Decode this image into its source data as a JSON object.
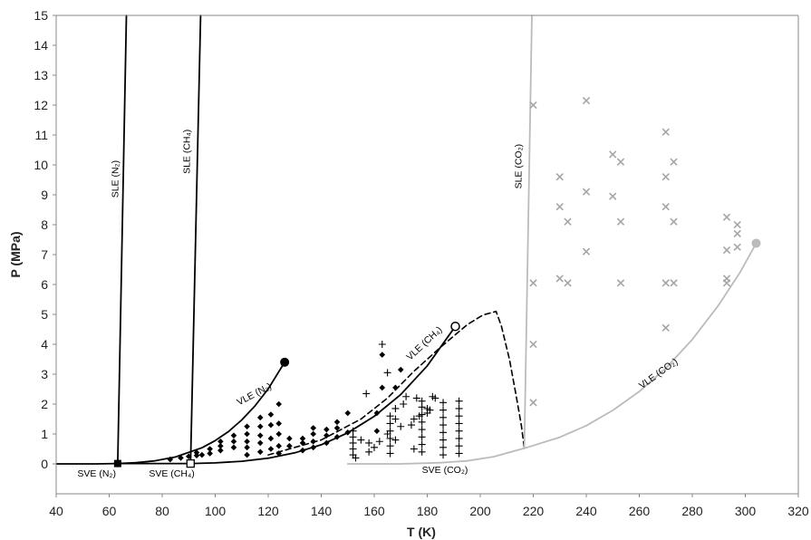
{
  "chart_data": {
    "type": "scatter",
    "xlabel": "T (K)",
    "ylabel": "P (MPa)",
    "xlim": [
      40,
      320
    ],
    "ylim": [
      -1,
      15
    ],
    "x_ticks": [
      40,
      60,
      80,
      100,
      120,
      140,
      160,
      180,
      200,
      220,
      240,
      260,
      280,
      300,
      320
    ],
    "y_ticks": [
      0,
      1,
      2,
      3,
      4,
      5,
      6,
      7,
      8,
      9,
      10,
      11,
      12,
      13,
      14,
      15
    ],
    "colors": {
      "black": "#000000",
      "gray": "#bbbbbb",
      "gray_marker": "#a6a6a6"
    },
    "lines": [
      {
        "id": "sve-n2",
        "color": "black",
        "width": 1.8,
        "points": [
          [
            40,
            0
          ],
          [
            55,
            0
          ],
          [
            63.2,
            0.0125
          ]
        ]
      },
      {
        "id": "sle-n2",
        "color": "black",
        "width": 1.8,
        "points": [
          [
            63.2,
            0.0125
          ],
          [
            66.5,
            15
          ]
        ]
      },
      {
        "id": "vle-n2",
        "color": "black",
        "width": 1.8,
        "points": [
          [
            63.2,
            0.0125
          ],
          [
            70,
            0.04
          ],
          [
            77,
            0.1
          ],
          [
            85,
            0.23
          ],
          [
            95,
            0.54
          ],
          [
            100,
            0.78
          ],
          [
            105,
            1.08
          ],
          [
            110,
            1.47
          ],
          [
            115,
            1.94
          ],
          [
            120,
            2.51
          ],
          [
            126.2,
            3.4
          ]
        ]
      },
      {
        "id": "sve-ch4",
        "color": "black",
        "width": 1.8,
        "points": [
          [
            63.2,
            0.0125
          ],
          [
            80,
            0.0125
          ],
          [
            90.7,
            0.0117
          ]
        ]
      },
      {
        "id": "sle-ch4",
        "color": "black",
        "width": 1.8,
        "points": [
          [
            90.7,
            0.0117
          ],
          [
            94.5,
            15
          ]
        ]
      },
      {
        "id": "vle-ch4",
        "color": "black",
        "width": 1.8,
        "points": [
          [
            90.7,
            0.0117
          ],
          [
            100,
            0.034
          ],
          [
            110,
            0.088
          ],
          [
            120,
            0.19
          ],
          [
            130,
            0.37
          ],
          [
            140,
            0.64
          ],
          [
            150,
            1.04
          ],
          [
            160,
            1.59
          ],
          [
            170,
            2.32
          ],
          [
            180,
            3.28
          ],
          [
            190.6,
            4.6
          ]
        ]
      },
      {
        "id": "dashed-envelope",
        "color": "black",
        "width": 1.6,
        "dash": "6,4",
        "points": [
          [
            120,
            0.3
          ],
          [
            140,
            0.8
          ],
          [
            155,
            1.5
          ],
          [
            165,
            2.2
          ],
          [
            175,
            3.1
          ],
          [
            185,
            3.9
          ],
          [
            195,
            4.65
          ],
          [
            201,
            4.98
          ],
          [
            206,
            5.1
          ],
          [
            208,
            4.6
          ],
          [
            211,
            3.5
          ],
          [
            213.5,
            2.3
          ],
          [
            215.5,
            1.3
          ],
          [
            216.6,
            0.52
          ]
        ]
      },
      {
        "id": "sve-co2",
        "color": "gray",
        "width": 1.8,
        "points": [
          [
            150,
            0.0
          ],
          [
            170,
            0.0
          ],
          [
            185,
            0.04
          ],
          [
            195,
            0.1
          ],
          [
            205,
            0.24
          ],
          [
            216.6,
            0.52
          ]
        ]
      },
      {
        "id": "sle-co2",
        "color": "gray",
        "width": 1.8,
        "points": [
          [
            216.6,
            0.52
          ],
          [
            219.5,
            15
          ]
        ]
      },
      {
        "id": "vle-co2",
        "color": "gray",
        "width": 1.8,
        "points": [
          [
            216.6,
            0.52
          ],
          [
            230,
            0.89
          ],
          [
            240,
            1.28
          ],
          [
            250,
            1.79
          ],
          [
            260,
            2.42
          ],
          [
            270,
            3.2
          ],
          [
            280,
            4.16
          ],
          [
            290,
            5.32
          ],
          [
            298,
            6.4
          ],
          [
            304.1,
            7.38
          ]
        ]
      }
    ],
    "endpoints": [
      {
        "id": "n2-triple-point",
        "shape": "filled-square",
        "color": "black",
        "x": 63.2,
        "y": 0.0125
      },
      {
        "id": "ch4-triple-point",
        "shape": "open-square",
        "color": "black",
        "x": 90.7,
        "y": 0.0117
      },
      {
        "id": "n2-critical-point",
        "shape": "filled-circle",
        "color": "black",
        "x": 126.2,
        "y": 3.4
      },
      {
        "id": "ch4-critical-point",
        "shape": "open-circle",
        "color": "black",
        "x": 190.6,
        "y": 4.6
      },
      {
        "id": "co2-critical-point",
        "shape": "filled-circle",
        "color": "gray",
        "x": 304.1,
        "y": 7.38
      }
    ],
    "curve_labels": [
      {
        "text": "SVE (N₂)",
        "x": 48,
        "y": -0.42,
        "angle": 0,
        "color": "black"
      },
      {
        "text": "SVE (CH₄)",
        "x": 75,
        "y": -0.42,
        "angle": 0,
        "color": "black"
      },
      {
        "text": "SVE (CO₂)",
        "x": 178,
        "y": -0.3,
        "angle": 0,
        "color": "black"
      },
      {
        "text": "SLE (N₂)",
        "x": 63.5,
        "y": 8.9,
        "angle": -90,
        "color": "black"
      },
      {
        "text": "SLE (CH₄)",
        "x": 90.5,
        "y": 9.7,
        "angle": -90,
        "color": "black"
      },
      {
        "text": "SLE (CO₂)",
        "x": 215.5,
        "y": 9.2,
        "angle": -90,
        "color": "black"
      },
      {
        "text": "VLE (N₂)",
        "x": 109,
        "y": 1.95,
        "angle": -28,
        "color": "black"
      },
      {
        "text": "VLE (CH₄)",
        "x": 173.5,
        "y": 3.45,
        "angle": -43,
        "color": "black"
      },
      {
        "text": "VLE (CO₂)",
        "x": 261,
        "y": 2.5,
        "angle": -36,
        "color": "black"
      }
    ],
    "series": [
      {
        "name": "",
        "marker": "diamond",
        "color": "black",
        "points": [
          [
            83,
            0.15
          ],
          [
            87,
            0.2
          ],
          [
            90,
            0.25
          ],
          [
            93,
            0.28
          ],
          [
            93,
            0.38
          ],
          [
            95,
            0.3
          ],
          [
            98,
            0.35
          ],
          [
            98,
            0.5
          ],
          [
            102,
            0.45
          ],
          [
            102,
            0.6
          ],
          [
            102,
            0.75
          ],
          [
            107,
            0.55
          ],
          [
            107,
            0.75
          ],
          [
            107,
            0.95
          ],
          [
            112,
            0.3
          ],
          [
            112,
            0.55
          ],
          [
            112,
            0.75
          ],
          [
            112,
            1.0
          ],
          [
            112,
            1.25
          ],
          [
            117,
            0.4
          ],
          [
            117,
            0.7
          ],
          [
            117,
            0.95
          ],
          [
            117,
            1.25
          ],
          [
            117,
            1.55
          ],
          [
            121,
            0.5
          ],
          [
            121,
            0.85
          ],
          [
            121,
            1.3
          ],
          [
            121,
            1.65
          ],
          [
            124,
            0.35
          ],
          [
            124,
            0.6
          ],
          [
            124,
            1.0
          ],
          [
            124,
            1.35
          ],
          [
            124,
            2.0
          ],
          [
            128,
            0.6
          ],
          [
            128,
            0.85
          ],
          [
            133,
            0.45
          ],
          [
            133,
            0.7
          ],
          [
            133,
            0.85
          ],
          [
            137,
            0.55
          ],
          [
            137,
            0.75
          ],
          [
            137,
            1.0
          ],
          [
            137,
            1.2
          ],
          [
            142,
            0.7
          ],
          [
            142,
            0.95
          ],
          [
            142,
            1.15
          ],
          [
            146,
            0.9
          ],
          [
            146,
            1.2
          ],
          [
            146,
            1.4
          ],
          [
            150,
            1.05
          ],
          [
            150,
            1.7
          ],
          [
            161,
            1.1
          ],
          [
            161,
            1.7
          ],
          [
            163,
            2.55
          ],
          [
            163,
            3.65
          ],
          [
            168,
            2.55
          ],
          [
            170,
            3.15
          ]
        ]
      },
      {
        "name": "",
        "marker": "plus",
        "color": "black",
        "points": [
          [
            152,
            0.3
          ],
          [
            152,
            0.5
          ],
          [
            152,
            0.7
          ],
          [
            152,
            0.9
          ],
          [
            152,
            1.1
          ],
          [
            153,
            0.2
          ],
          [
            155,
            0.8
          ],
          [
            157,
            2.35
          ],
          [
            158,
            0.4
          ],
          [
            158,
            0.7
          ],
          [
            160,
            0.55
          ],
          [
            162,
            0.75
          ],
          [
            163,
            4.0
          ],
          [
            165,
            3.05
          ],
          [
            165,
            1.0
          ],
          [
            166,
            0.35
          ],
          [
            166,
            0.6
          ],
          [
            166,
            0.85
          ],
          [
            166,
            1.1
          ],
          [
            166,
            1.35
          ],
          [
            166,
            1.6
          ],
          [
            168,
            1.85
          ],
          [
            168,
            0.8
          ],
          [
            168,
            1.5
          ],
          [
            170,
            1.25
          ],
          [
            171,
            2.0
          ],
          [
            172,
            2.25
          ],
          [
            174,
            1.3
          ],
          [
            175,
            1.5
          ],
          [
            175,
            0.5
          ],
          [
            176,
            2.2
          ],
          [
            177,
            1.6
          ],
          [
            178,
            0.4
          ],
          [
            178,
            0.65
          ],
          [
            178,
            0.9
          ],
          [
            178,
            1.15
          ],
          [
            178,
            1.4
          ],
          [
            178,
            1.65
          ],
          [
            178,
            1.9
          ],
          [
            178,
            2.1
          ],
          [
            180,
            1.7
          ],
          [
            180,
            1.85
          ],
          [
            181,
            1.8
          ],
          [
            182,
            2.25
          ],
          [
            183,
            2.2
          ],
          [
            186,
            0.3
          ],
          [
            186,
            0.55
          ],
          [
            186,
            0.8
          ],
          [
            186,
            1.05
          ],
          [
            186,
            1.3
          ],
          [
            186,
            1.55
          ],
          [
            186,
            1.8
          ],
          [
            186,
            2.05
          ],
          [
            192,
            0.35
          ],
          [
            192,
            0.6
          ],
          [
            192,
            0.85
          ],
          [
            192,
            1.1
          ],
          [
            192,
            1.35
          ],
          [
            192,
            1.6
          ],
          [
            192,
            1.85
          ],
          [
            192,
            2.1
          ]
        ]
      },
      {
        "name": "",
        "marker": "x",
        "color": "gray_marker",
        "points": [
          [
            220,
            12.0
          ],
          [
            240,
            12.15
          ],
          [
            230,
            9.6
          ],
          [
            230,
            8.6
          ],
          [
            233,
            8.1
          ],
          [
            220,
            6.05
          ],
          [
            230,
            6.2
          ],
          [
            233,
            6.05
          ],
          [
            220,
            4.0
          ],
          [
            220,
            2.05
          ],
          [
            240,
            9.1
          ],
          [
            240,
            7.1
          ],
          [
            250,
            10.35
          ],
          [
            250,
            8.95
          ],
          [
            253,
            10.1
          ],
          [
            253,
            8.1
          ],
          [
            253,
            6.05
          ],
          [
            270,
            11.1
          ],
          [
            270,
            9.6
          ],
          [
            270,
            8.6
          ],
          [
            270,
            6.05
          ],
          [
            270,
            4.55
          ],
          [
            273,
            10.1
          ],
          [
            273,
            8.1
          ],
          [
            273,
            6.05
          ],
          [
            293,
            8.25
          ],
          [
            293,
            7.15
          ],
          [
            293,
            6.2
          ],
          [
            293,
            6.05
          ],
          [
            297,
            8.0
          ],
          [
            297,
            7.7
          ],
          [
            297,
            7.25
          ]
        ]
      }
    ]
  }
}
